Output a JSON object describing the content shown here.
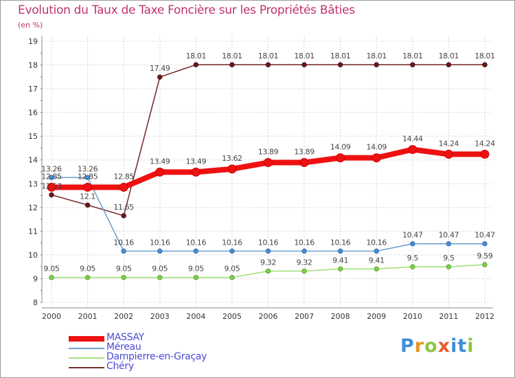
{
  "title": "Evolution du Taux de Taxe Foncière sur les Propriétés Bâties",
  "unit": "(en %)",
  "brand": {
    "letters": [
      "P",
      "r",
      "o",
      "x",
      "i",
      "t",
      "i"
    ],
    "colors": [
      "#3d8fd6",
      "#e8932a",
      "#8cc63f",
      "#e85a2a",
      "#3d8fd6",
      "#3d8fd6",
      "#8cc63f"
    ]
  },
  "chart_data": {
    "type": "line",
    "title": "Evolution du Taux de Taxe Foncière sur les Propriétés Bâties",
    "ylabel": "(en %)",
    "xlabel": "",
    "ylim": [
      8,
      19
    ],
    "grid": true,
    "categories": [
      "2000",
      "2001",
      "2002",
      "2003",
      "2004",
      "2005",
      "2006",
      "2007",
      "2008",
      "2009",
      "2010",
      "2011",
      "2012"
    ],
    "y_ticks": [
      "8",
      "9",
      "10",
      "11",
      "12",
      "13",
      "14",
      "15",
      "16",
      "17",
      "18",
      "19"
    ],
    "series": [
      {
        "name": "MASSAY",
        "color": "#ee1111",
        "values": [
          12.85,
          12.85,
          12.85,
          13.49,
          13.49,
          13.62,
          13.89,
          13.89,
          14.09,
          14.09,
          14.44,
          14.24,
          14.24
        ],
        "labels": [
          "12.85",
          "12.85",
          "12.85",
          "13.49",
          "13.49",
          "13.62",
          "13.89",
          "13.89",
          "14.09",
          "14.09",
          "14.44",
          "14.24",
          "14.24"
        ]
      },
      {
        "name": "Méreau",
        "color": "#6fa0d0",
        "values": [
          13.26,
          13.26,
          10.16,
          10.16,
          10.16,
          10.16,
          10.16,
          10.16,
          10.16,
          10.16,
          10.47,
          10.47,
          10.47
        ],
        "labels": [
          "13.26",
          "13.26",
          "10.16",
          "10.16",
          "10.16",
          "10.16",
          "10.16",
          "10.16",
          "10.16",
          "10.16",
          "10.47",
          "10.47",
          "10.47"
        ]
      },
      {
        "name": "Dampierre-en-Graçay",
        "color": "#a6e07a",
        "values": [
          9.05,
          9.05,
          9.05,
          9.05,
          9.05,
          9.05,
          9.32,
          9.32,
          9.41,
          9.41,
          9.5,
          9.5,
          9.59
        ],
        "labels": [
          "9.05",
          "9.05",
          "9.05",
          "9.05",
          "9.05",
          "9.05",
          "9.32",
          "9.32",
          "9.41",
          "9.41",
          "9.5",
          "9.5",
          "9.59"
        ]
      },
      {
        "name": "Chéry",
        "color": "#7a3030",
        "values": [
          12.53,
          12.1,
          11.65,
          17.49,
          18.01,
          18.01,
          18.01,
          18.01,
          18.01,
          18.01,
          18.01,
          18.01,
          18.01
        ],
        "labels": [
          "12.53",
          "12.1",
          "11.65",
          "17.49",
          "18.01",
          "18.01",
          "18.01",
          "18.01",
          "18.01",
          "18.01",
          "18.01",
          "18.01",
          "18.01"
        ]
      }
    ]
  }
}
